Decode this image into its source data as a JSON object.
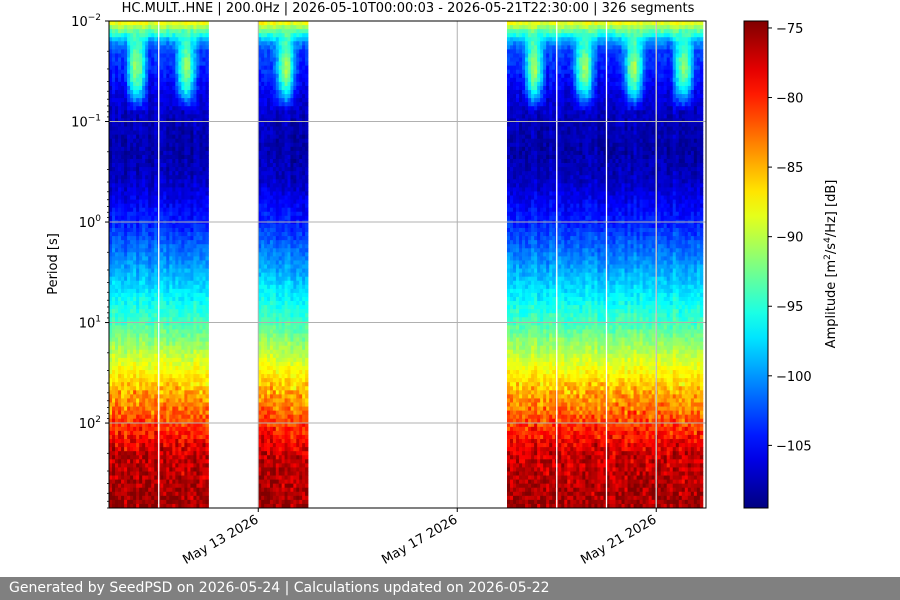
{
  "chart_data": {
    "type": "heatmap",
    "title": "HC.MULT..HNE | 200.0Hz | 2026-05-10T00:00:03 - 2026-05-21T22:30:00 | 326 segments",
    "xlabel": "",
    "ylabel": "Period [s]",
    "y_scale": "log",
    "y_inverted": true,
    "ylim": [
      0.01,
      700
    ],
    "y_ticks": [
      {
        "value": 0.01,
        "base": "10",
        "exp": "−2"
      },
      {
        "value": 0.1,
        "base": "10",
        "exp": "−1"
      },
      {
        "value": 1,
        "base": "10",
        "exp": "0"
      },
      {
        "value": 10,
        "base": "10",
        "exp": "1"
      },
      {
        "value": 100,
        "base": "10",
        "exp": "2"
      }
    ],
    "x_range": [
      "2026-05-10",
      "2026-05-22T00:00"
    ],
    "x_ticks": [
      {
        "date": "2026-05-13",
        "label": "May 13 2026"
      },
      {
        "date": "2026-05-17",
        "label": "May 17 2026"
      },
      {
        "date": "2026-05-21",
        "label": "May 21 2026"
      }
    ],
    "grid": true,
    "data_segments": [
      {
        "start": "2026-05-10T00:00",
        "end": "2026-05-12T00:00"
      },
      {
        "start": "2026-05-13T00:00",
        "end": "2026-05-14T00:00"
      },
      {
        "start": "2026-05-18T00:00",
        "end": "2026-05-21T22:30"
      }
    ],
    "colorbar": {
      "label_prefix": "Amplitude [m",
      "label_sup1": "2",
      "label_mid": "/s",
      "label_sup2": "4",
      "label_suffix": "/Hz] [dB]",
      "min": -109.5,
      "max": -74.5,
      "colormap": "jet",
      "ticks": [
        {
          "value": -75,
          "label": "−75"
        },
        {
          "value": -80,
          "label": "−80"
        },
        {
          "value": -85,
          "label": "−85"
        },
        {
          "value": -90,
          "label": "−90"
        },
        {
          "value": -95,
          "label": "−95"
        },
        {
          "value": -100,
          "label": "−100"
        },
        {
          "value": -105,
          "label": "−105"
        }
      ]
    },
    "amplitude_profile": [
      {
        "period": 0.01,
        "db": -87
      },
      {
        "period": 0.0125,
        "db": -93
      },
      {
        "period": 0.016,
        "db": -100
      },
      {
        "period": 0.02,
        "db": -103
      },
      {
        "period": 0.03,
        "db": -104
      },
      {
        "period": 0.05,
        "db": -106
      },
      {
        "period": 0.1,
        "db": -107.5
      },
      {
        "period": 0.2,
        "db": -108
      },
      {
        "period": 0.4,
        "db": -107
      },
      {
        "period": 1,
        "db": -104
      },
      {
        "period": 2,
        "db": -101
      },
      {
        "period": 4,
        "db": -98
      },
      {
        "period": 10,
        "db": -94
      },
      {
        "period": 20,
        "db": -90
      },
      {
        "period": 40,
        "db": -86
      },
      {
        "period": 100,
        "db": -81
      },
      {
        "period": 200,
        "db": -77
      },
      {
        "period": 700,
        "db": -75.5
      }
    ],
    "daytime_hump": {
      "period_min": 0.0125,
      "period_max": 0.08,
      "db_boost": 13
    }
  },
  "footer": {
    "text": "Generated by SeedPSD on 2026-05-24 | Calculations updated on 2026-05-22"
  }
}
